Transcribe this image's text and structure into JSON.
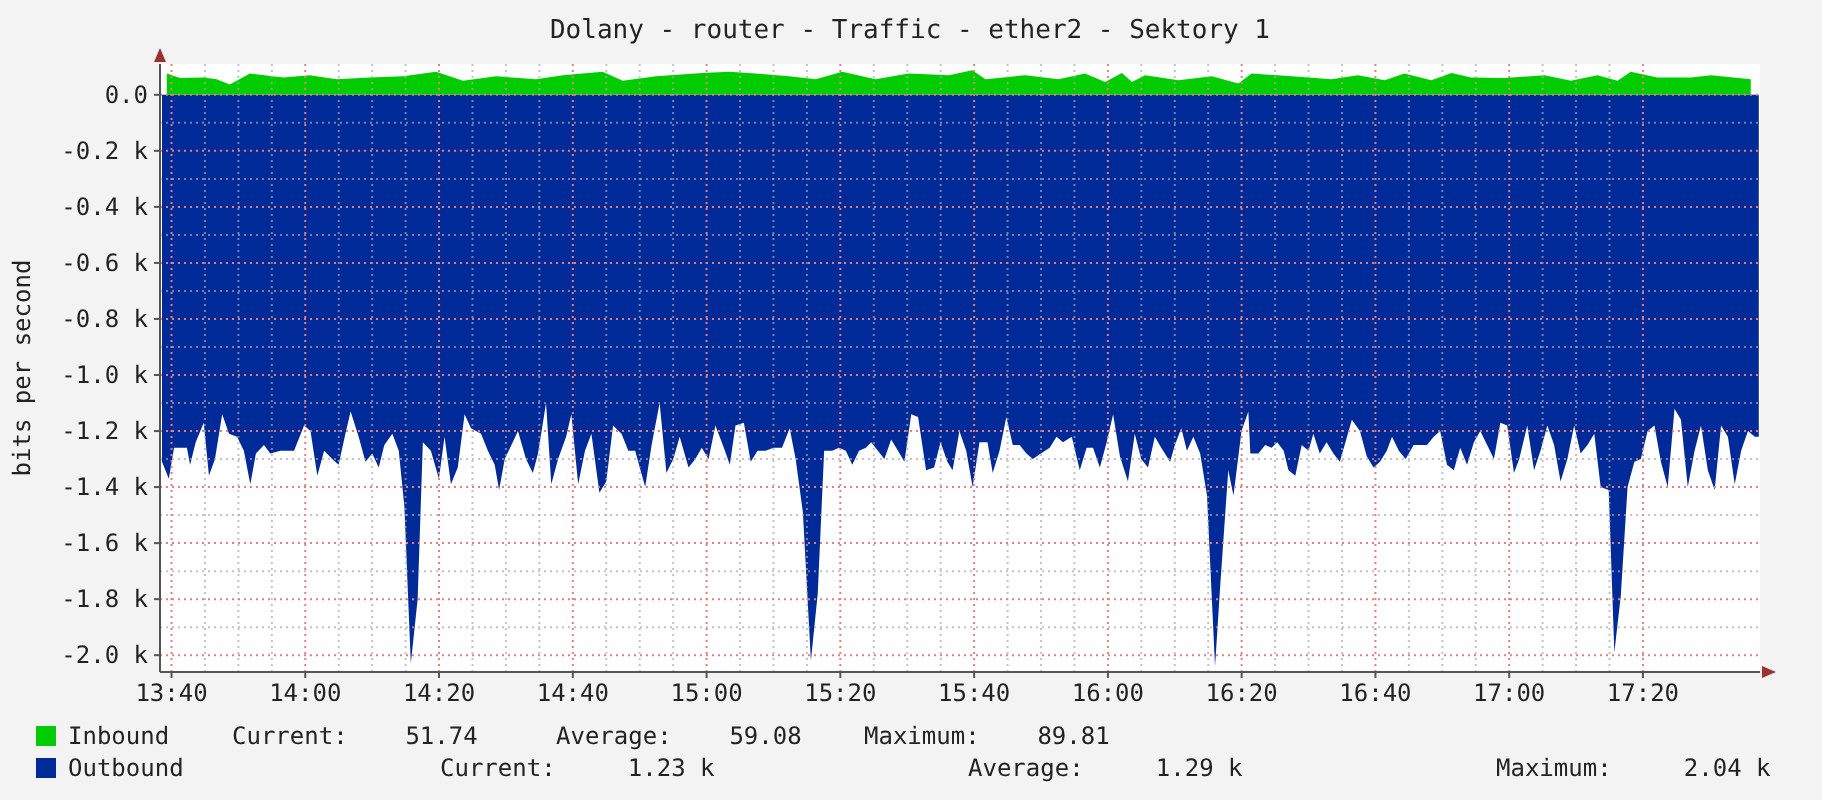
{
  "chart_data": {
    "type": "area",
    "title": "Dolany - router - Traffic - ether2 - Sektory 1",
    "ylabel": "bits per second",
    "xlim": [
      13.638,
      17.625
    ],
    "ylim": [
      -2060,
      110
    ],
    "xticks": [
      {
        "value": 13.6667,
        "label": "13:40"
      },
      {
        "value": 14,
        "label": "14:00"
      },
      {
        "value": 14.3333,
        "label": "14:20"
      },
      {
        "value": 14.6667,
        "label": "14:40"
      },
      {
        "value": 15,
        "label": "15:00"
      },
      {
        "value": 15.3333,
        "label": "15:20"
      },
      {
        "value": 15.6667,
        "label": "15:40"
      },
      {
        "value": 16,
        "label": "16:00"
      },
      {
        "value": 16.3333,
        "label": "16:20"
      },
      {
        "value": 16.6667,
        "label": "16:40"
      },
      {
        "value": 17,
        "label": "17:00"
      },
      {
        "value": 17.3333,
        "label": "17:20"
      }
    ],
    "yticks": [
      {
        "value": 0,
        "label": "0.0"
      },
      {
        "value": -200,
        "label": "-0.2 k"
      },
      {
        "value": -400,
        "label": "-0.4 k"
      },
      {
        "value": -600,
        "label": "-0.6 k"
      },
      {
        "value": -800,
        "label": "-0.8 k"
      },
      {
        "value": -1000,
        "label": "-1.0 k"
      },
      {
        "value": -1200,
        "label": "-1.2 k"
      },
      {
        "value": -1400,
        "label": "-1.4 k"
      },
      {
        "value": -1600,
        "label": "-1.6 k"
      },
      {
        "value": -1800,
        "label": "-1.8 k"
      },
      {
        "value": -2000,
        "label": "-2.0 k"
      }
    ],
    "grid": true,
    "legend": "bottom",
    "annotations": [
      "Current:    51.74",
      "Average:    59.08",
      "Maximum:    89.81",
      "Current:     1.23 k",
      "Average:     1.29 k",
      "Maximum:     2.04 k"
    ],
    "series": [
      {
        "name": "Outbound",
        "color": "#002a97",
        "x": [
          13.643,
          13.66,
          13.673,
          13.705,
          13.713,
          13.727,
          13.747,
          13.76,
          13.775,
          13.793,
          13.81,
          13.83,
          13.847,
          13.863,
          13.877,
          13.897,
          13.913,
          13.938,
          13.972,
          13.997,
          14.013,
          14.03,
          14.047,
          14.067,
          14.083,
          14.1,
          14.113,
          14.133,
          14.15,
          14.167,
          14.183,
          14.197,
          14.217,
          14.233,
          14.247,
          14.263,
          14.28,
          14.293,
          14.313,
          14.333,
          14.347,
          14.363,
          14.38,
          14.397,
          14.413,
          14.438,
          14.455,
          14.472,
          14.483,
          14.497,
          14.517,
          14.53,
          14.55,
          14.567,
          14.58,
          14.6,
          14.613,
          14.63,
          14.65,
          14.663,
          14.68,
          14.697,
          14.713,
          14.733,
          14.75,
          14.767,
          14.788,
          14.805,
          14.822,
          14.847,
          14.863,
          14.883,
          14.9,
          14.917,
          14.933,
          14.955,
          14.972,
          14.988,
          15.005,
          15.022,
          15.043,
          15.058,
          15.072,
          15.093,
          15.11,
          15.127,
          15.147,
          15.167,
          15.188,
          15.207,
          15.222,
          15.24,
          15.26,
          15.277,
          15.293,
          15.313,
          15.33,
          15.347,
          15.363,
          15.38,
          15.397,
          15.41,
          15.427,
          15.443,
          15.46,
          15.477,
          15.493,
          15.51,
          15.527,
          15.547,
          15.567,
          15.583,
          15.6,
          15.613,
          15.63,
          15.647,
          15.663,
          15.68,
          15.7,
          15.713,
          15.73,
          15.747,
          15.763,
          15.78,
          15.797,
          15.813,
          15.833,
          15.855,
          15.872,
          15.888,
          15.91,
          15.93,
          15.947,
          15.963,
          15.98,
          15.997,
          16.013,
          16.03,
          16.05,
          16.067,
          16.083,
          16.1,
          16.117,
          16.133,
          16.155,
          16.167,
          16.183,
          16.197,
          16.213,
          16.23,
          16.247,
          16.267,
          16.28,
          16.3,
          16.313,
          16.333,
          16.35,
          16.355,
          16.375,
          16.392,
          16.408,
          16.422,
          16.438,
          16.45,
          16.467,
          16.483,
          16.5,
          16.512,
          16.528,
          16.545,
          16.562,
          16.578,
          16.592,
          16.608,
          16.628,
          16.645,
          16.662,
          16.678,
          16.695,
          16.708,
          16.725,
          16.742,
          16.762,
          16.778,
          16.795,
          16.812,
          16.828,
          16.845,
          16.862,
          16.878,
          16.895,
          16.912,
          16.928,
          16.945,
          16.962,
          16.978,
          16.995,
          17.012,
          17.025,
          17.045,
          17.062,
          17.078,
          17.095,
          17.112,
          17.128,
          17.145,
          17.162,
          17.178,
          17.195,
          17.212,
          17.228,
          17.248,
          17.262,
          17.278,
          17.295,
          17.312,
          17.328,
          17.345,
          17.362,
          17.378,
          17.395,
          17.412,
          17.428,
          17.445,
          17.462,
          17.478,
          17.495,
          17.512,
          17.528,
          17.545,
          17.562,
          17.578,
          17.595,
          17.612,
          17.622
        ],
        "values": [
          -1310,
          -1370,
          -1260,
          -1260,
          -1320,
          -1240,
          -1170,
          -1360,
          -1300,
          -1140,
          -1210,
          -1220,
          -1270,
          -1390,
          -1280,
          -1250,
          -1280,
          -1270,
          -1270,
          -1180,
          -1200,
          -1360,
          -1270,
          -1300,
          -1320,
          -1210,
          -1130,
          -1220,
          -1310,
          -1280,
          -1330,
          -1250,
          -1210,
          -1270,
          -1470,
          -2030,
          -1800,
          -1240,
          -1270,
          -1370,
          -1220,
          -1390,
          -1330,
          -1140,
          -1190,
          -1210,
          -1270,
          -1320,
          -1410,
          -1300,
          -1240,
          -1200,
          -1300,
          -1350,
          -1280,
          -1100,
          -1390,
          -1300,
          -1220,
          -1140,
          -1390,
          -1270,
          -1210,
          -1420,
          -1380,
          -1180,
          -1210,
          -1270,
          -1270,
          -1400,
          -1250,
          -1100,
          -1350,
          -1300,
          -1220,
          -1330,
          -1300,
          -1260,
          -1300,
          -1180,
          -1260,
          -1320,
          -1180,
          -1170,
          -1310,
          -1270,
          -1270,
          -1260,
          -1260,
          -1190,
          -1300,
          -1490,
          -2020,
          -1780,
          -1270,
          -1270,
          -1260,
          -1270,
          -1320,
          -1270,
          -1260,
          -1240,
          -1270,
          -1300,
          -1230,
          -1270,
          -1310,
          -1140,
          -1150,
          -1340,
          -1330,
          -1240,
          -1310,
          -1340,
          -1200,
          -1270,
          -1400,
          -1240,
          -1240,
          -1350,
          -1270,
          -1150,
          -1250,
          -1250,
          -1280,
          -1300,
          -1280,
          -1260,
          -1220,
          -1240,
          -1220,
          -1340,
          -1260,
          -1260,
          -1330,
          -1240,
          -1140,
          -1290,
          -1380,
          -1210,
          -1300,
          -1330,
          -1220,
          -1260,
          -1310,
          -1250,
          -1190,
          -1270,
          -1220,
          -1280,
          -1430,
          -2040,
          -1750,
          -1340,
          -1430,
          -1200,
          -1130,
          -1280,
          -1280,
          -1250,
          -1260,
          -1240,
          -1270,
          -1340,
          -1360,
          -1250,
          -1270,
          -1210,
          -1280,
          -1240,
          -1280,
          -1310,
          -1240,
          -1160,
          -1200,
          -1290,
          -1330,
          -1310,
          -1270,
          -1220,
          -1270,
          -1300,
          -1250,
          -1250,
          -1250,
          -1220,
          -1200,
          -1320,
          -1340,
          -1260,
          -1320,
          -1240,
          -1200,
          -1250,
          -1300,
          -1170,
          -1180,
          -1350,
          -1300,
          -1180,
          -1340,
          -1270,
          -1180,
          -1250,
          -1380,
          -1300,
          -1180,
          -1280,
          -1250,
          -1210,
          -1400,
          -1410,
          -1990,
          -1790,
          -1400,
          -1310,
          -1300,
          -1200,
          -1180,
          -1310,
          -1400,
          -1120,
          -1160,
          -1400,
          -1270,
          -1180,
          -1340,
          -1410,
          -1180,
          -1220,
          -1390,
          -1270,
          -1200,
          -1220,
          -1220
        ]
      },
      {
        "name": "Inbound",
        "color": "#00cc00",
        "x": [
          13.655,
          13.688,
          13.746,
          13.779,
          13.812,
          13.862,
          13.945,
          14.011,
          14.078,
          14.161,
          14.244,
          14.326,
          14.393,
          14.476,
          14.575,
          14.642,
          14.741,
          14.791,
          14.874,
          14.99,
          15.056,
          15.122,
          15.205,
          15.272,
          15.338,
          15.421,
          15.504,
          15.604,
          15.662,
          15.695,
          15.794,
          15.877,
          15.943,
          15.993,
          16.035,
          16.06,
          16.093,
          16.176,
          16.259,
          16.325,
          16.358,
          16.458,
          16.557,
          16.623,
          16.69,
          16.739,
          16.806,
          16.856,
          16.905,
          16.988,
          17.088,
          17.154,
          17.22,
          17.27,
          17.303,
          17.369,
          17.453,
          17.503,
          17.602
        ],
        "values": [
          76,
          60,
          62,
          56,
          37,
          76,
          62,
          70,
          56,
          62,
          66,
          82,
          50,
          66,
          56,
          70,
          82,
          50,
          66,
          78,
          82,
          76,
          66,
          56,
          82,
          56,
          76,
          70,
          88,
          56,
          70,
          56,
          76,
          46,
          78,
          46,
          70,
          52,
          66,
          40,
          76,
          66,
          56,
          70,
          52,
          76,
          52,
          78,
          62,
          60,
          70,
          50,
          70,
          50,
          82,
          62,
          62,
          70,
          56
        ]
      }
    ]
  }
}
